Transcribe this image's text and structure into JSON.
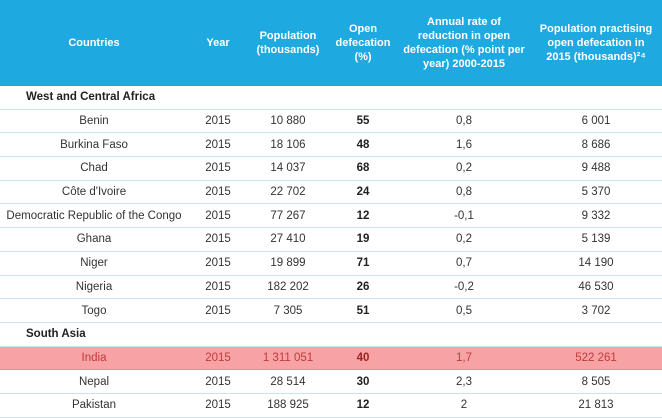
{
  "headers": {
    "country": "Countries",
    "year": "Year",
    "population": "Population (thousands)",
    "open_defecation": "Open defecation (%)",
    "annual_rate": "Annual rate of reduction in open defecation (% point per year) 2000-2015",
    "pop_practising": "Population practising open defecation in 2015 (thousands)²⁴"
  },
  "sections": [
    {
      "title": "West and Central Africa",
      "rows": [
        {
          "country": "Benin",
          "year": "2015",
          "population": "10 880",
          "od": "55",
          "rate": "0,8",
          "pop_od": "6 001"
        },
        {
          "country": "Burkina Faso",
          "year": "2015",
          "population": "18 106",
          "od": "48",
          "rate": "1,6",
          "pop_od": "8 686"
        },
        {
          "country": "Chad",
          "year": "2015",
          "population": "14 037",
          "od": "68",
          "rate": "0,2",
          "pop_od": "9 488"
        },
        {
          "country": "Côte d'Ivoire",
          "year": "2015",
          "population": "22 702",
          "od": "24",
          "rate": "0,8",
          "pop_od": "5 370"
        },
        {
          "country": "Democratic Republic of the Congo",
          "year": "2015",
          "population": "77 267",
          "od": "12",
          "rate": "-0,1",
          "pop_od": "9 332"
        },
        {
          "country": "Ghana",
          "year": "2015",
          "population": "27 410",
          "od": "19",
          "rate": "0,2",
          "pop_od": "5 139"
        },
        {
          "country": "Niger",
          "year": "2015",
          "population": "19 899",
          "od": "71",
          "rate": "0,7",
          "pop_od": "14 190"
        },
        {
          "country": "Nigeria",
          "year": "2015",
          "population": "182 202",
          "od": "26",
          "rate": "-0,2",
          "pop_od": "46 530"
        },
        {
          "country": "Togo",
          "year": "2015",
          "population": "7 305",
          "od": "51",
          "rate": "0,5",
          "pop_od": "3 702"
        }
      ]
    },
    {
      "title": "South Asia",
      "rows": [
        {
          "country": "India",
          "year": "2015",
          "population": "1 311 051",
          "od": "40",
          "rate": "1,7",
          "pop_od": "522 261",
          "highlight": true
        },
        {
          "country": "Nepal",
          "year": "2015",
          "population": "28 514",
          "od": "30",
          "rate": "2,3",
          "pop_od": "8 505"
        },
        {
          "country": "Pakistan",
          "year": "2015",
          "population": "188 925",
          "od": "12",
          "rate": "2",
          "pop_od": "21 813"
        }
      ]
    }
  ],
  "colors": {
    "header_bg": "#1fa9e1",
    "highlight_bg": "#f7a3a6"
  }
}
